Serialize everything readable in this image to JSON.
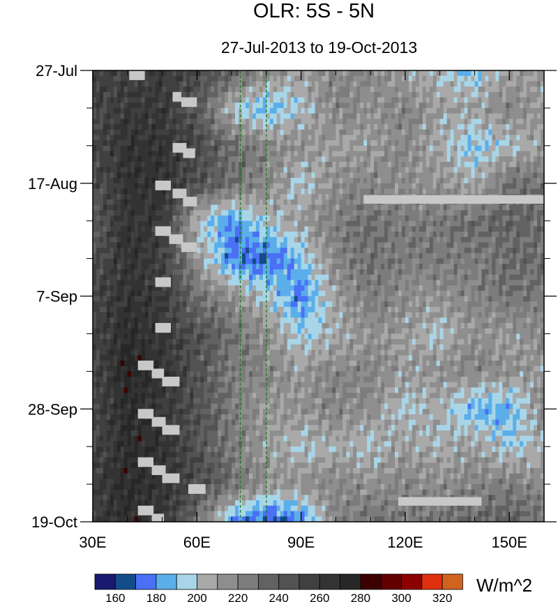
{
  "chart_data": {
    "type": "heatmap",
    "title": "OLR: 5S - 5N",
    "subtitle": "27-Jul-2013 to 19-Oct-2013",
    "xlabel": "",
    "ylabel": "",
    "xlim": [
      30,
      160
    ],
    "ylim_days": [
      0,
      84
    ],
    "x_ticks": [
      {
        "value": 30,
        "label": "30E"
      },
      {
        "value": 60,
        "label": "60E"
      },
      {
        "value": 90,
        "label": "90E"
      },
      {
        "value": 120,
        "label": "120E"
      },
      {
        "value": 150,
        "label": "150E"
      }
    ],
    "y_ticks": [
      {
        "day": 0,
        "label": "27-Jul"
      },
      {
        "day": 21,
        "label": "17-Aug"
      },
      {
        "day": 42,
        "label": "7-Sep"
      },
      {
        "day": 63,
        "label": "28-Sep"
      },
      {
        "day": 84,
        "label": "19-Oct"
      }
    ],
    "grid_lon": [
      30,
      40,
      50,
      60,
      70,
      80,
      90,
      100,
      110,
      120,
      130,
      140,
      150,
      160
    ],
    "grid_day": [
      0,
      7,
      14,
      21,
      28,
      35,
      42,
      49,
      56,
      63,
      70,
      77,
      84
    ],
    "values": [
      [
        255,
        255,
        260,
        250,
        240,
        220,
        210,
        220,
        220,
        210,
        200,
        190,
        210,
        210
      ],
      [
        250,
        260,
        260,
        240,
        200,
        185,
        200,
        220,
        215,
        220,
        210,
        210,
        220,
        210
      ],
      [
        250,
        265,
        265,
        250,
        230,
        220,
        215,
        210,
        210,
        220,
        205,
        190,
        200,
        210
      ],
      [
        245,
        265,
        265,
        245,
        230,
        220,
        200,
        215,
        220,
        215,
        215,
        205,
        230,
        230
      ],
      [
        240,
        265,
        260,
        200,
        180,
        200,
        210,
        225,
        230,
        225,
        225,
        230,
        235,
        230
      ],
      [
        245,
        265,
        255,
        215,
        175,
        170,
        190,
        220,
        230,
        225,
        225,
        225,
        230,
        230
      ],
      [
        250,
        265,
        260,
        230,
        215,
        200,
        175,
        210,
        225,
        215,
        215,
        220,
        230,
        225
      ],
      [
        250,
        270,
        260,
        245,
        230,
        215,
        195,
        205,
        215,
        210,
        200,
        215,
        210,
        220
      ],
      [
        250,
        275,
        265,
        245,
        225,
        220,
        210,
        220,
        220,
        210,
        215,
        220,
        215,
        210
      ],
      [
        250,
        270,
        260,
        245,
        225,
        210,
        215,
        220,
        215,
        200,
        205,
        185,
        185,
        220
      ],
      [
        250,
        270,
        265,
        245,
        225,
        210,
        200,
        205,
        200,
        210,
        205,
        210,
        195,
        205
      ],
      [
        255,
        270,
        265,
        250,
        230,
        215,
        215,
        220,
        215,
        220,
        215,
        220,
        225,
        215
      ],
      [
        255,
        270,
        260,
        230,
        180,
        165,
        175,
        220,
        230,
        225,
        230,
        235,
        235,
        230
      ]
    ],
    "levels": [
      150,
      160,
      170,
      180,
      190,
      200,
      210,
      220,
      230,
      240,
      250,
      260,
      270,
      280,
      290,
      300,
      310,
      320,
      330
    ],
    "level_colors": [
      "#191970",
      "#134c88",
      "#4a70f5",
      "#5aaeea",
      "#a8d6e8",
      "#a9a9a9",
      "#8e8e8e",
      "#7c7c7c",
      "#626262",
      "#525252",
      "#404040",
      "#333333",
      "#272727",
      "#3c0000",
      "#620000",
      "#8c0000",
      "#e0300f",
      "#d0641e"
    ],
    "colorbar_labels": [
      "160",
      "180",
      "200",
      "220",
      "240",
      "260",
      "280",
      "300",
      "320"
    ],
    "colorbar_units": "W/m^2",
    "missing_color": "#c8c8c8",
    "missing_regions": [
      {
        "lon": [
          40.5,
          45
        ],
        "day": [
          0,
          1.8
        ]
      },
      {
        "lon": [
          53,
          55.5
        ],
        "day": [
          4,
          5.8
        ]
      },
      {
        "lon": [
          55.5,
          60
        ],
        "day": [
          5,
          6.8
        ]
      },
      {
        "lon": [
          53,
          57
        ],
        "day": [
          13.5,
          15.3
        ]
      },
      {
        "lon": [
          56,
          59.5
        ],
        "day": [
          14.5,
          16.3
        ]
      },
      {
        "lon": [
          48,
          52.5
        ],
        "day": [
          20.5,
          22.3
        ]
      },
      {
        "lon": [
          53,
          57
        ],
        "day": [
          22,
          23.8
        ]
      },
      {
        "lon": [
          56,
          60
        ],
        "day": [
          23.5,
          25.3
        ]
      },
      {
        "lon": [
          108,
          160
        ],
        "day": [
          23.2,
          24.8
        ]
      },
      {
        "lon": [
          48,
          52.5
        ],
        "day": [
          29,
          30.8
        ]
      },
      {
        "lon": [
          52,
          56
        ],
        "day": [
          30.5,
          32.3
        ]
      },
      {
        "lon": [
          55.5,
          60
        ],
        "day": [
          32,
          33.8
        ]
      },
      {
        "lon": [
          48,
          52.5
        ],
        "day": [
          38.5,
          40.3
        ]
      },
      {
        "lon": [
          48,
          52.5
        ],
        "day": [
          47,
          48.8
        ]
      },
      {
        "lon": [
          43,
          47.5
        ],
        "day": [
          54,
          55.8
        ]
      },
      {
        "lon": [
          47,
          50.5
        ],
        "day": [
          55.5,
          57.3
        ]
      },
      {
        "lon": [
          50,
          55
        ],
        "day": [
          57,
          58.8
        ]
      },
      {
        "lon": [
          43,
          47.5
        ],
        "day": [
          63,
          64.8
        ]
      },
      {
        "lon": [
          47,
          51
        ],
        "day": [
          64.5,
          66.3
        ]
      },
      {
        "lon": [
          50,
          55
        ],
        "day": [
          66,
          67.8
        ]
      },
      {
        "lon": [
          43,
          47.5
        ],
        "day": [
          72,
          73.8
        ]
      },
      {
        "lon": [
          47,
          51
        ],
        "day": [
          73.5,
          75.3
        ]
      },
      {
        "lon": [
          50,
          55
        ],
        "day": [
          75,
          76.8
        ]
      },
      {
        "lon": [
          57.5,
          62.5
        ],
        "day": [
          77,
          78.8
        ]
      },
      {
        "lon": [
          118,
          142
        ],
        "day": [
          79.4,
          81
        ]
      },
      {
        "lon": [
          43,
          47.5
        ],
        "day": [
          81,
          82.8
        ]
      },
      {
        "lon": [
          47,
          50.5
        ],
        "day": [
          82.5,
          84
        ]
      }
    ],
    "reference_lines_lon": [
      72.5,
      80
    ],
    "reference_line_color": "#1a7a1a"
  }
}
